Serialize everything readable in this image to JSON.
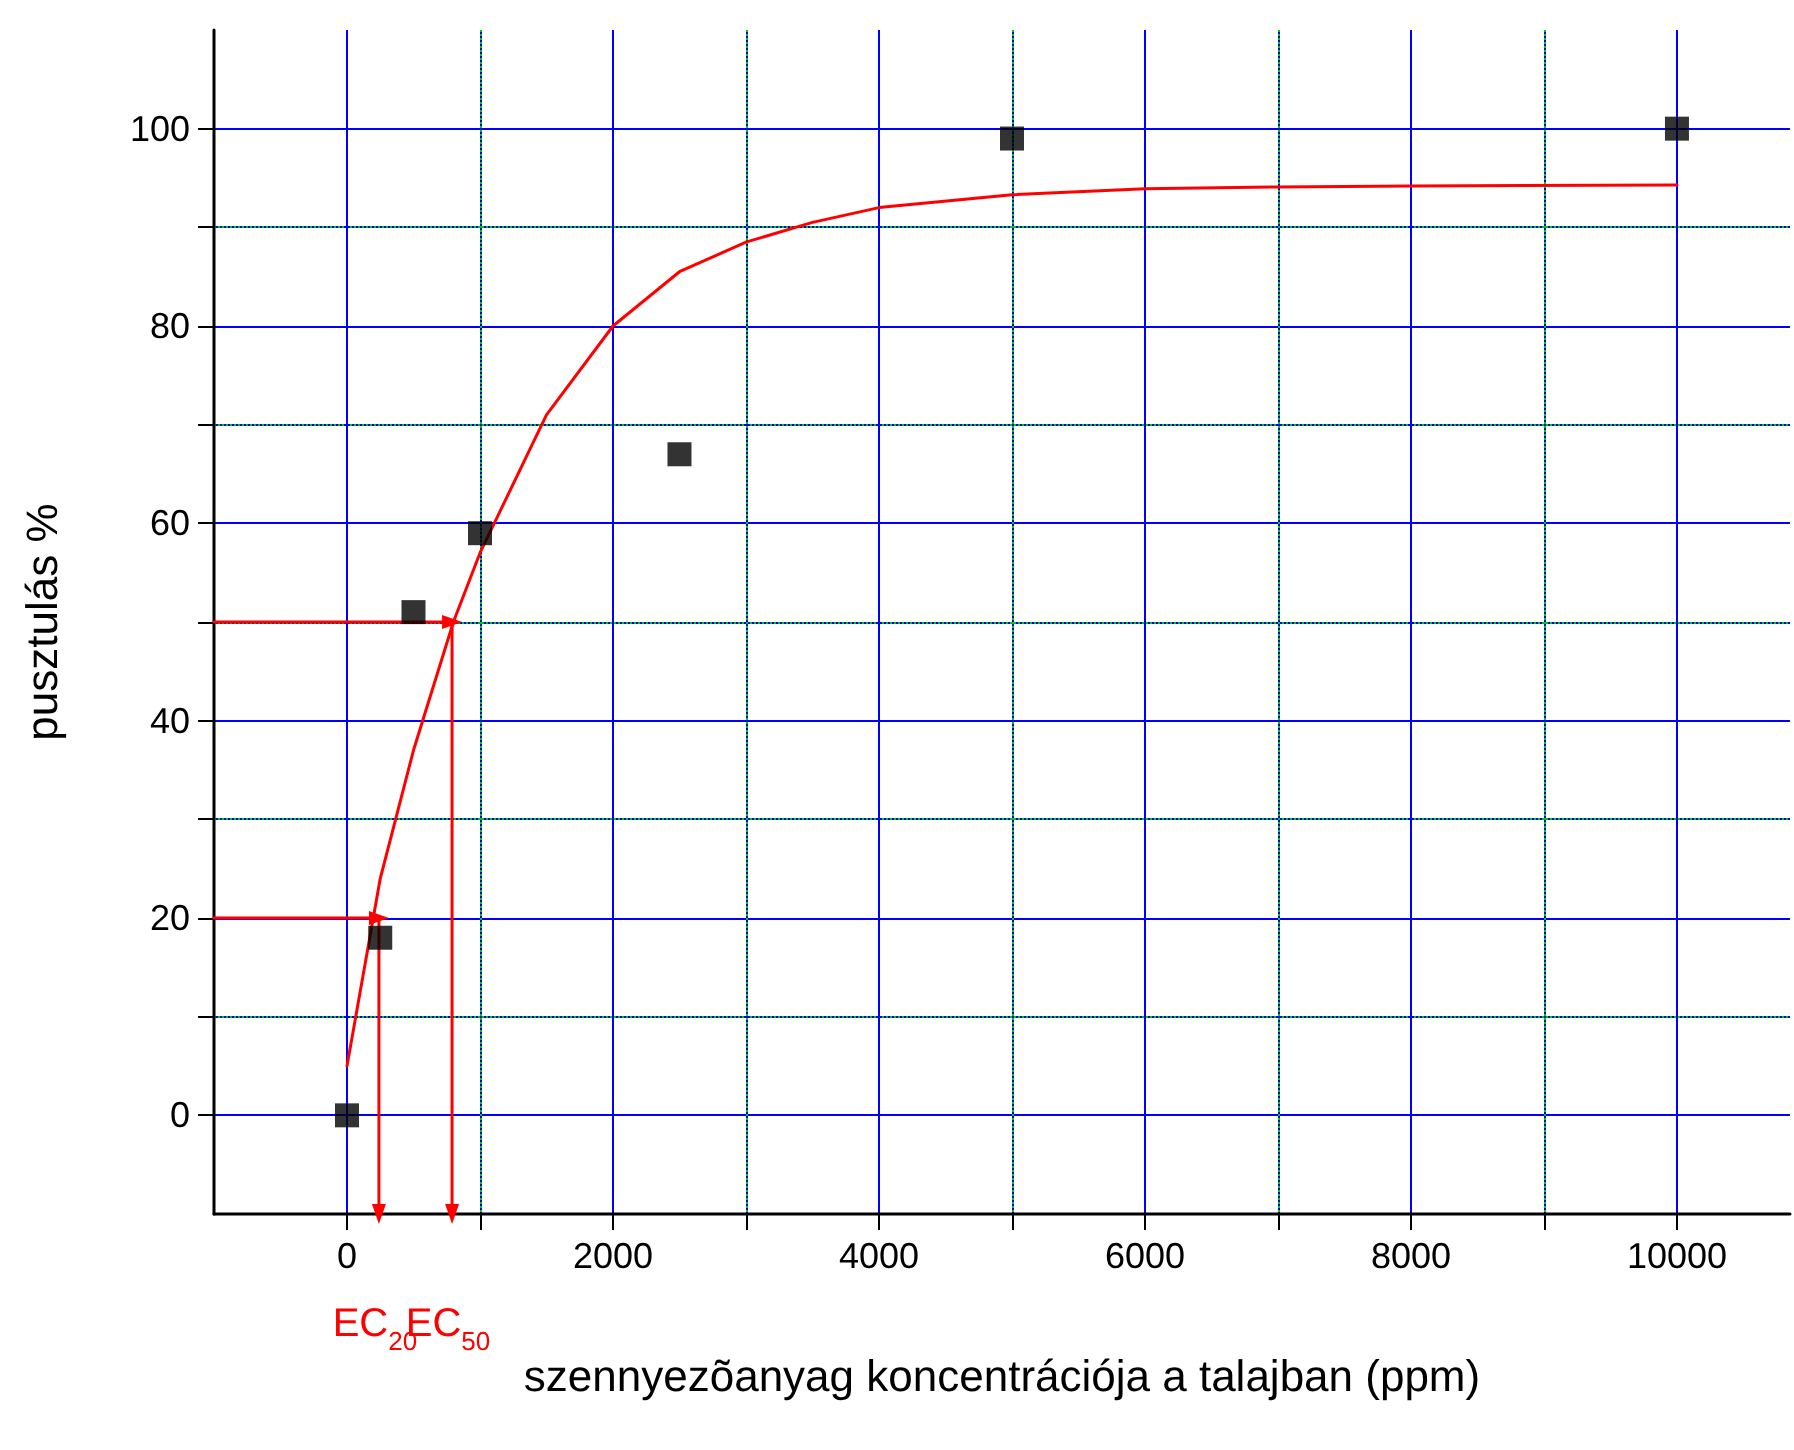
{
  "chart_data": {
    "type": "scatter",
    "xlabel": "szennyezõanyag koncentrációja a talajban (ppm)",
    "ylabel": "pusztulás %",
    "xlim": [
      -1000,
      10850
    ],
    "xticks": [
      0,
      {
        "value": 1000,
        "label": null
      },
      2000,
      {
        "value": 3000,
        "label": null
      },
      4000,
      {
        "value": 5000,
        "label": null
      },
      6000,
      {
        "value": 7000,
        "label": null
      },
      8000,
      {
        "value": 9000,
        "label": null
      },
      10000
    ],
    "ylim": [
      -10,
      110
    ],
    "yticks": [
      0,
      {
        "value": 10,
        "label": null
      },
      20,
      {
        "value": 30,
        "label": null
      },
      40,
      {
        "value": 50,
        "label": null
      },
      60,
      {
        "value": 70,
        "label": null
      },
      80,
      {
        "value": 90,
        "label": null
      },
      100
    ],
    "grid": true,
    "series": [
      {
        "color": "#000000",
        "marker": "square",
        "x": [
          0,
          250,
          500,
          1000,
          2500,
          5000,
          10000
        ],
        "values": [
          0,
          18,
          51,
          59,
          67,
          99,
          100
        ]
      },
      {
        "type": "line",
        "color": "#ff0000",
        "marker": "none",
        "line_style": "solid",
        "x": [
          0,
          250,
          500,
          800,
          1000,
          1500,
          2000,
          2500,
          3000,
          3500,
          4000,
          5000,
          6000,
          7000,
          8000,
          10000
        ],
        "values": [
          5,
          24,
          37,
          50,
          57,
          71,
          80,
          85.5,
          88.5,
          90.5,
          92,
          93.3,
          93.9,
          94.1,
          94.2,
          94.3
        ]
      },
      {
        "type": "line",
        "color": "#ff0000",
        "marker": "triangle",
        "line_style": "solid",
        "x": [
          -1000,
          240,
          240
        ],
        "values": [
          20,
          20,
          -10
        ]
      },
      {
        "type": "line",
        "color": "#ff0000",
        "marker": "triangle",
        "line_style": "solid",
        "x": [
          -1000,
          790,
          790
        ],
        "values": [
          50,
          50,
          -10
        ]
      }
    ],
    "annotations": [
      "EC$_{20}$",
      "EC$_{50}$"
    ]
  }
}
